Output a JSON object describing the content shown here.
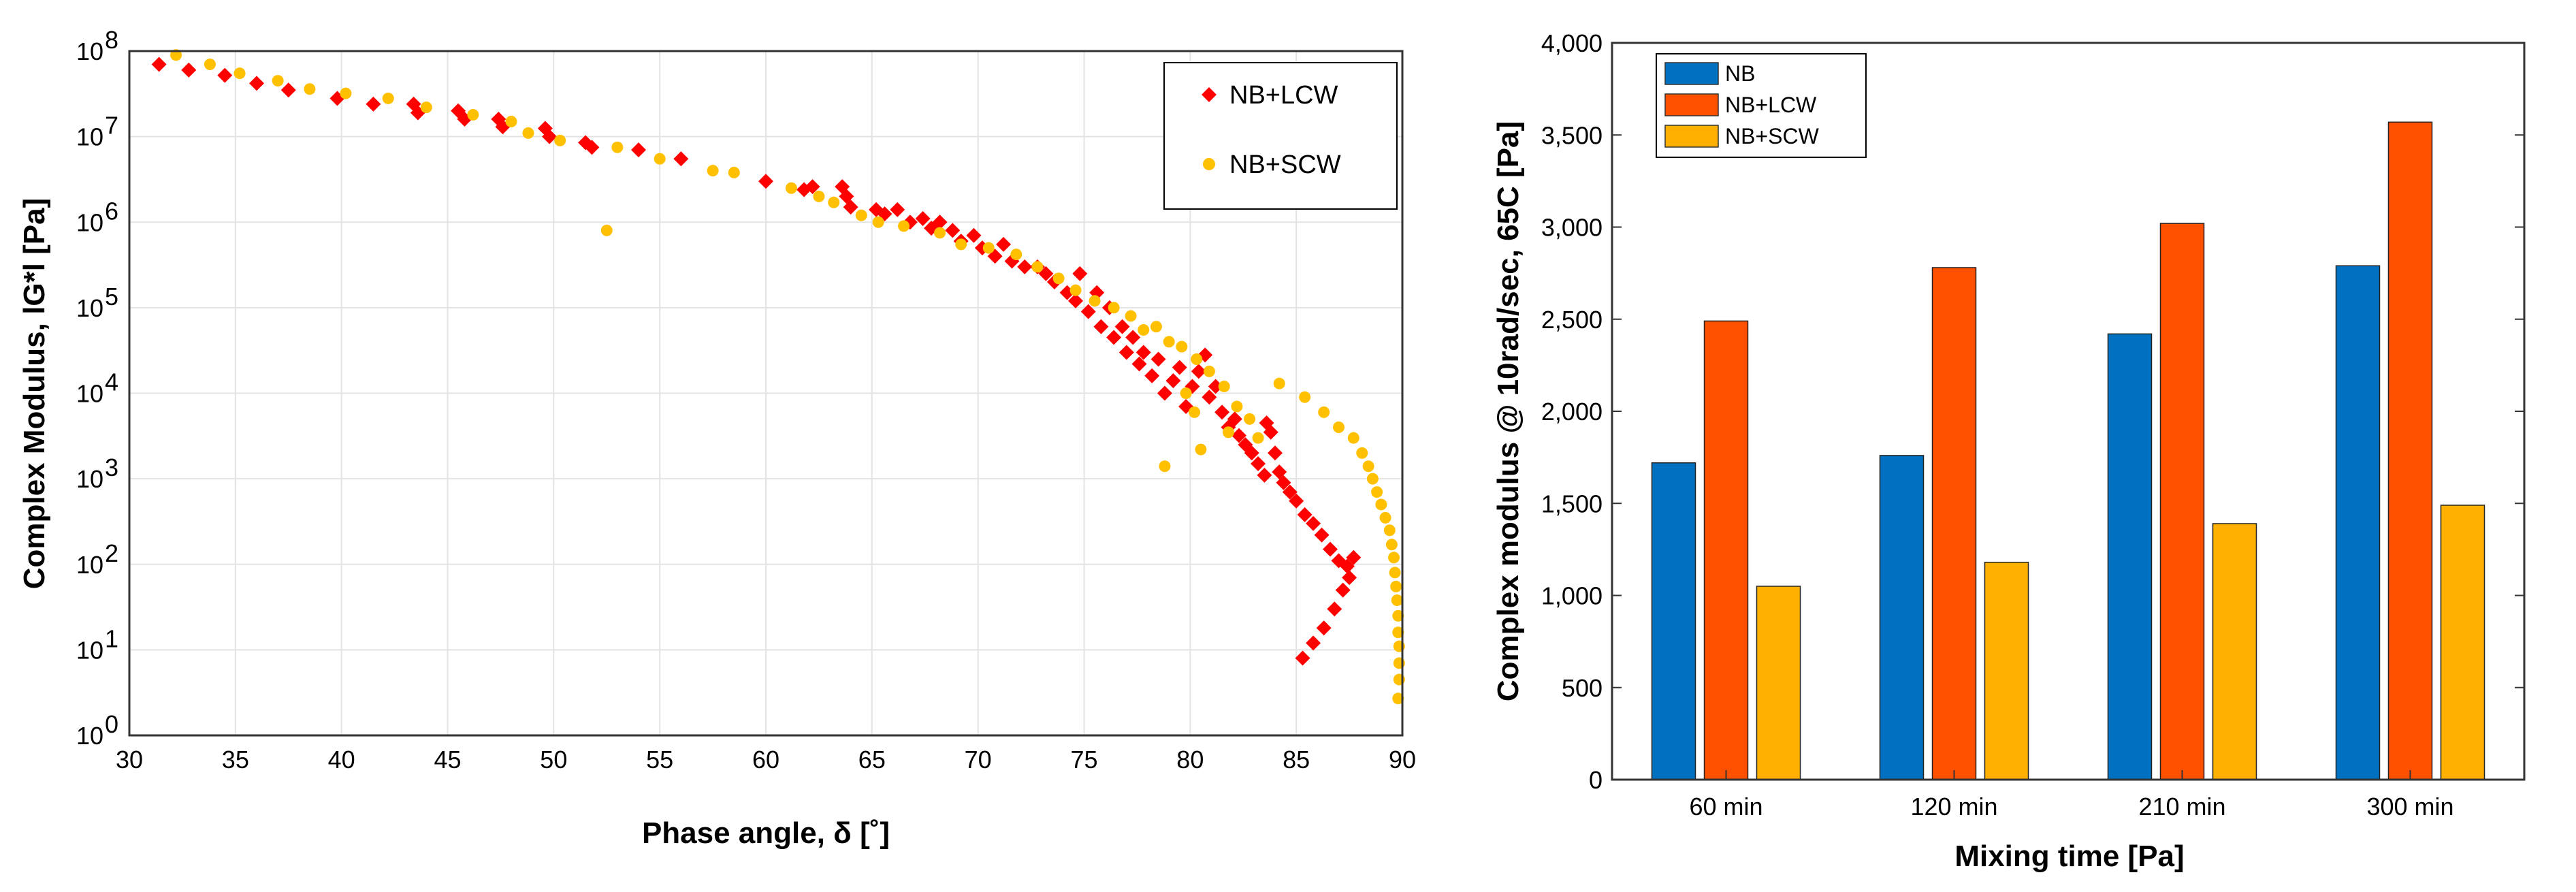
{
  "chart_data": [
    {
      "type": "scatter",
      "xlabel": "Phase angle, δ [˚]",
      "ylabel": "Complex Modulus, lG*l [Pa]",
      "xlim": [
        30,
        90
      ],
      "ylim_log10": [
        0,
        8
      ],
      "x_ticks": [
        "30",
        "35",
        "40",
        "45",
        "50",
        "55",
        "60",
        "65",
        "70",
        "75",
        "80",
        "85",
        "90"
      ],
      "y_ticks": [
        {
          "base": "10",
          "exp": "0"
        },
        {
          "base": "10",
          "exp": "1"
        },
        {
          "base": "10",
          "exp": "2"
        },
        {
          "base": "10",
          "exp": "3"
        },
        {
          "base": "10",
          "exp": "4"
        },
        {
          "base": "10",
          "exp": "5"
        },
        {
          "base": "10",
          "exp": "6"
        },
        {
          "base": "10",
          "exp": "7"
        },
        {
          "base": "10",
          "exp": "8"
        }
      ],
      "grid": true,
      "legend_position": "top-right",
      "series": [
        {
          "name": "NB+LCW",
          "color": "#ff0000",
          "marker": "diamond",
          "points": [
            [
              31.4,
              70000000.0
            ],
            [
              32.8,
              60000000.0
            ],
            [
              34.5,
              52000000.0
            ],
            [
              36,
              42000000.0
            ],
            [
              37.5,
              35000000.0
            ],
            [
              39.8,
              28000000.0
            ],
            [
              41.5,
              24000000.0
            ],
            [
              43.4,
              24000000.0
            ],
            [
              43.6,
              19000000.0
            ],
            [
              45.5,
              20000000.0
            ],
            [
              45.8,
              16000000.0
            ],
            [
              47.4,
              16000000.0
            ],
            [
              47.6,
              13000000.0
            ],
            [
              49.6,
              12500000.0
            ],
            [
              49.8,
              10000000.0
            ],
            [
              51.5,
              8500000.0
            ],
            [
              51.8,
              7500000.0
            ],
            [
              54,
              7000000.0
            ],
            [
              56,
              5500000.0
            ],
            [
              60,
              3000000.0
            ],
            [
              61.8,
              2400000.0
            ],
            [
              62.2,
              2600000.0
            ],
            [
              63.6,
              2600000.0
            ],
            [
              63.8,
              2000000.0
            ],
            [
              64,
              1500000.0
            ],
            [
              65.2,
              1400000.0
            ],
            [
              65.6,
              1250000.0
            ],
            [
              66.2,
              1400000.0
            ],
            [
              66.8,
              1000000.0
            ],
            [
              67.4,
              1100000.0
            ],
            [
              67.8,
              850000.0
            ],
            [
              68.2,
              1000000.0
            ],
            [
              68.8,
              800000.0
            ],
            [
              69.2,
              600000.0
            ],
            [
              69.8,
              700000.0
            ],
            [
              70.2,
              500000.0
            ],
            [
              70.8,
              400000.0
            ],
            [
              71.2,
              550000.0
            ],
            [
              71.6,
              350000.0
            ],
            [
              72.2,
              300000.0
            ],
            [
              72.8,
              300000.0
            ],
            [
              73.2,
              250000.0
            ],
            [
              73.6,
              200000.0
            ],
            [
              74.2,
              150000.0
            ],
            [
              74.8,
              250000.0
            ],
            [
              74.6,
              120000.0
            ],
            [
              75.2,
              90000.0
            ],
            [
              75.6,
              150000.0
            ],
            [
              75.8,
              60000.0
            ],
            [
              76.2,
              100000.0
            ],
            [
              76.4,
              45000.0
            ],
            [
              76.8,
              60000.0
            ],
            [
              77,
              30000.0
            ],
            [
              77.3,
              45000.0
            ],
            [
              77.6,
              22000.0
            ],
            [
              77.8,
              30000.0
            ],
            [
              78.2,
              16000.0
            ],
            [
              78.5,
              25000.0
            ],
            [
              78.8,
              10000.0
            ],
            [
              79.2,
              14000.0
            ],
            [
              79.5,
              20000.0
            ],
            [
              79.8,
              7000.0
            ],
            [
              80.1,
              12000.0
            ],
            [
              80.4,
              18000.0
            ],
            [
              80.7,
              28000.0
            ],
            [
              80.9,
              9000.0
            ],
            [
              81.2,
              12000.0
            ],
            [
              81.5,
              6000.0
            ],
            [
              81.8,
              4000.0
            ],
            [
              82.1,
              5000.0
            ],
            [
              82.3,
              3200.0
            ],
            [
              82.6,
              2500.0
            ],
            [
              82.9,
              2000.0
            ],
            [
              83.2,
              1500.0
            ],
            [
              83.5,
              1100.0
            ],
            [
              83.6,
              4500.0
            ],
            [
              83.8,
              3500.0
            ],
            [
              84,
              2000.0
            ],
            [
              84.2,
              1200.0
            ],
            [
              84.4,
              900
            ],
            [
              84.7,
              700
            ],
            [
              85,
              550
            ],
            [
              85.4,
              380
            ],
            [
              85.8,
              300
            ],
            [
              86.2,
              220
            ],
            [
              86.6,
              150
            ],
            [
              87,
              110
            ],
            [
              87.4,
              95
            ],
            [
              87.7,
              120
            ],
            [
              87.5,
              70
            ],
            [
              87.2,
              50
            ],
            [
              86.8,
              30
            ],
            [
              86.3,
              18
            ],
            [
              85.8,
              12
            ],
            [
              85.3,
              8
            ]
          ]
        },
        {
          "name": "NB+SCW",
          "color": "#ffc000",
          "marker": "circle",
          "points": [
            [
              32.2,
              90000000.0
            ],
            [
              33.8,
              70000000.0
            ],
            [
              35.2,
              55000000.0
            ],
            [
              37,
              45000000.0
            ],
            [
              38.5,
              36000000.0
            ],
            [
              40.2,
              32000000.0
            ],
            [
              42.2,
              28000000.0
            ],
            [
              44,
              22000000.0
            ],
            [
              46.2,
              18000000.0
            ],
            [
              48,
              15000000.0
            ],
            [
              48.8,
              11000000.0
            ],
            [
              50.3,
              9000000.0
            ],
            [
              52.5,
              800000.0
            ],
            [
              53,
              7500000.0
            ],
            [
              55,
              5500000.0
            ],
            [
              57.5,
              4000000.0
            ],
            [
              58.5,
              3800000.0
            ],
            [
              61.2,
              2500000.0
            ],
            [
              62.5,
              2000000.0
            ],
            [
              63.2,
              1700000.0
            ],
            [
              64.5,
              1200000.0
            ],
            [
              65.3,
              1000000.0
            ],
            [
              66.5,
              900000.0
            ],
            [
              68.2,
              750000.0
            ],
            [
              69.2,
              550000.0
            ],
            [
              70.5,
              500000.0
            ],
            [
              71.8,
              420000.0
            ],
            [
              72.8,
              300000.0
            ],
            [
              73.8,
              220000.0
            ],
            [
              74.6,
              160000.0
            ],
            [
              75.5,
              120000.0
            ],
            [
              76.4,
              100000.0
            ],
            [
              77.2,
              80000.0
            ],
            [
              77.8,
              55000.0
            ],
            [
              78.4,
              60000.0
            ],
            [
              79.0,
              40000.0
            ],
            [
              79.6,
              35000.0
            ],
            [
              80.3,
              25000.0
            ],
            [
              80.9,
              18000.0
            ],
            [
              81.6,
              12000.0
            ],
            [
              82.2,
              7000.0
            ],
            [
              82.8,
              5000.0
            ],
            [
              83.2,
              3000.0
            ],
            [
              79.8,
              10000.0
            ],
            [
              80.2,
              6000.0
            ],
            [
              80.5,
              2200.0
            ],
            [
              81.8,
              3500.0
            ],
            [
              78.8,
              1400.0
            ],
            [
              84.2,
              13000.0
            ],
            [
              85.4,
              9000.0
            ],
            [
              86.3,
              6000.0
            ],
            [
              87,
              4000.0
            ],
            [
              87.7,
              3000.0
            ],
            [
              88.1,
              2000.0
            ],
            [
              88.4,
              1400.0
            ],
            [
              88.6,
              1000.0
            ],
            [
              88.8,
              700.0
            ],
            [
              89.0,
              500.0
            ],
            [
              89.2,
              350.0
            ],
            [
              89.4,
              250.0
            ],
            [
              89.5,
              170.0
            ],
            [
              89.6,
              120.0
            ],
            [
              89.65,
              80
            ],
            [
              89.7,
              55
            ],
            [
              89.75,
              38
            ],
            [
              89.8,
              25
            ],
            [
              89.8,
              16
            ],
            [
              89.85,
              11
            ],
            [
              89.85,
              7
            ],
            [
              89.85,
              4.5
            ],
            [
              89.8,
              2.7
            ]
          ]
        }
      ]
    },
    {
      "type": "bar",
      "xlabel": "Mixing time [Pa]",
      "ylabel": "Complex modulus @ 10rad/sec, 65C [Pa]",
      "categories": [
        "60 min",
        "120 min",
        "210 min",
        "300 min"
      ],
      "ylim": [
        0,
        4000
      ],
      "y_ticks": [
        "0",
        "500",
        "1,000",
        "1,500",
        "2,000",
        "2,500",
        "3,000",
        "3,500",
        "4,000"
      ],
      "grid": false,
      "legend_position": "top-left",
      "series": [
        {
          "name": "NB",
          "color": "#0070c0",
          "values": [
            1720,
            1760,
            2420,
            2790
          ]
        },
        {
          "name": "NB+LCW",
          "color": "#ff5000",
          "values": [
            2490,
            2780,
            3020,
            3570
          ]
        },
        {
          "name": "NB+SCW",
          "color": "#ffb000",
          "values": [
            1050,
            1180,
            1390,
            1490
          ]
        }
      ]
    }
  ]
}
